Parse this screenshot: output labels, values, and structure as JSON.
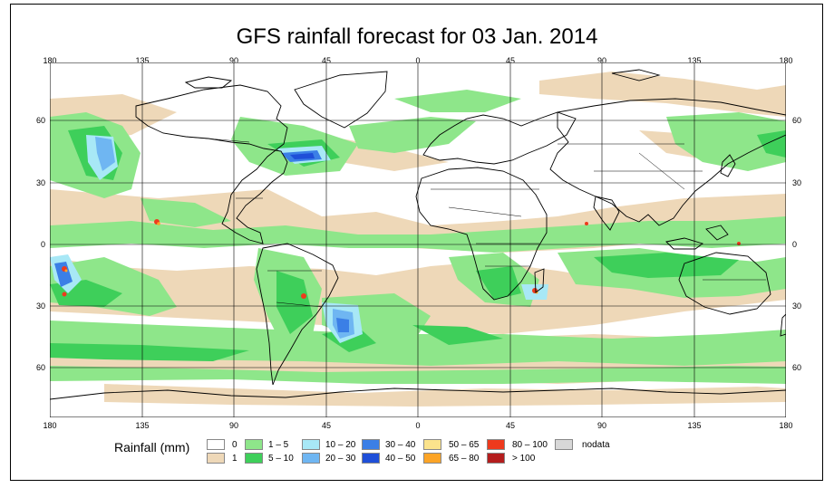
{
  "title": "GFS rainfall forecast for 03 Jan. 2014",
  "lon_ticks_top": [
    "180",
    "135",
    "90",
    "45",
    "0",
    "45",
    "90",
    "135",
    "180"
  ],
  "lon_ticks_bottom": [
    "180",
    "135",
    "90",
    "45",
    "0",
    "45",
    "90",
    "135",
    "180"
  ],
  "lat_ticks_left": [
    "60",
    "30",
    "0",
    "30",
    "60"
  ],
  "lat_ticks_right": [
    "60",
    "30",
    "0",
    "30",
    "60"
  ],
  "legend": {
    "title": "Rainfall (mm)",
    "items": [
      {
        "label": "0",
        "color": "#ffffff"
      },
      {
        "label": "1",
        "color": "#eed8b8"
      },
      {
        "label": "1 – 5",
        "color": "#8ee68a"
      },
      {
        "label": "5 – 10",
        "color": "#3ecf5a"
      },
      {
        "label": "10 – 20",
        "color": "#a8e8f6"
      },
      {
        "label": "20 – 30",
        "color": "#6fb6f2"
      },
      {
        "label": "30 – 40",
        "color": "#3b7fe6"
      },
      {
        "label": "40 – 50",
        "color": "#1f4fd8"
      },
      {
        "label": "50 – 65",
        "color": "#fbe38c"
      },
      {
        "label": "65 – 80",
        "color": "#fca426"
      },
      {
        "label": "80 – 100",
        "color": "#ee3a1d"
      },
      {
        "label": "> 100",
        "color": "#b41d1d"
      },
      {
        "label": "nodata",
        "color": "#d8d8d8"
      }
    ]
  }
}
